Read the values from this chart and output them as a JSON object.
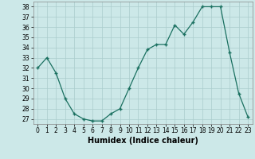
{
  "x": [
    0,
    1,
    2,
    3,
    4,
    5,
    6,
    7,
    8,
    9,
    10,
    11,
    12,
    13,
    14,
    15,
    16,
    17,
    18,
    19,
    20,
    21,
    22,
    23
  ],
  "y": [
    32,
    33,
    31.5,
    29,
    27.5,
    27,
    26.8,
    26.8,
    27.5,
    28,
    30,
    32,
    33.8,
    34.3,
    34.3,
    36.2,
    35.3,
    36.5,
    38,
    38,
    38,
    33.5,
    29.5,
    27.2
  ],
  "line_color": "#1a7060",
  "marker_color": "#1a7060",
  "bg_color": "#cce8e8",
  "grid_color": "#aacccc",
  "xlabel": "Humidex (Indice chaleur)",
  "ylim": [
    26.5,
    38.5
  ],
  "xlim": [
    -0.5,
    23.5
  ],
  "yticks": [
    27,
    28,
    29,
    30,
    31,
    32,
    33,
    34,
    35,
    36,
    37,
    38
  ],
  "xticks": [
    0,
    1,
    2,
    3,
    4,
    5,
    6,
    7,
    8,
    9,
    10,
    11,
    12,
    13,
    14,
    15,
    16,
    17,
    18,
    19,
    20,
    21,
    22,
    23
  ],
  "label_fontsize": 7,
  "tick_fontsize": 5.5
}
